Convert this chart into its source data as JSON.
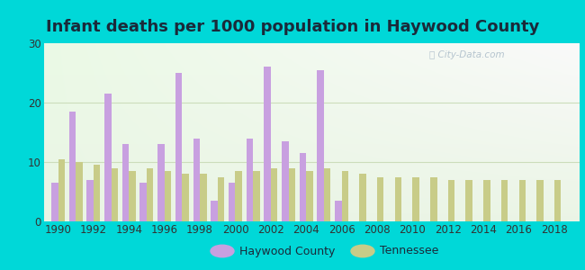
{
  "title": "Infant deaths per 1000 population in Haywood County",
  "years": [
    1990,
    1991,
    1992,
    1993,
    1994,
    1995,
    1996,
    1997,
    1998,
    1999,
    2000,
    2001,
    2002,
    2003,
    2004,
    2005,
    2006,
    2007,
    2008,
    2009,
    2010,
    2011,
    2012,
    2013,
    2014,
    2015,
    2016,
    2017,
    2018
  ],
  "haywood": [
    6.5,
    18.5,
    7.0,
    21.5,
    13.0,
    6.5,
    13.0,
    25.0,
    14.0,
    3.5,
    6.5,
    14.0,
    26.0,
    13.5,
    11.5,
    25.5,
    3.5,
    0,
    0,
    0,
    0,
    0,
    0,
    0,
    0,
    0,
    0,
    0,
    0
  ],
  "tennessee": [
    10.5,
    10.0,
    9.5,
    9.0,
    8.5,
    9.0,
    8.5,
    8.0,
    8.0,
    7.5,
    8.5,
    8.5,
    9.0,
    9.0,
    8.5,
    9.0,
    8.5,
    8.0,
    7.5,
    7.5,
    7.5,
    7.5,
    7.0,
    7.0,
    7.0,
    7.0,
    7.0,
    7.0,
    7.0
  ],
  "haywood_color": "#c8a0e0",
  "tennessee_color": "#c8cc88",
  "ylim": [
    0,
    30
  ],
  "yticks": [
    0,
    10,
    20,
    30
  ],
  "bg_outer": "#00d8d8",
  "bg_chart": "#eef8ee",
  "title_fontsize": 13,
  "legend_haywood": "Haywood County",
  "legend_tennessee": "Tennessee",
  "bar_width": 0.38,
  "watermark": "City-Data.com"
}
